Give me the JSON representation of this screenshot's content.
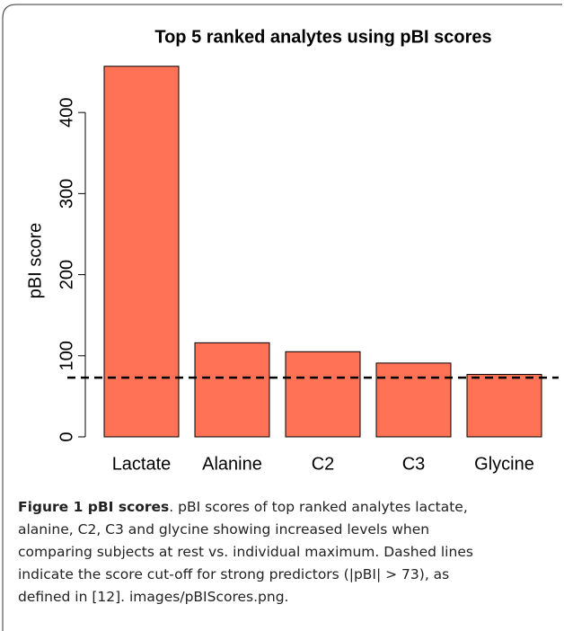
{
  "chart_data": {
    "type": "bar",
    "title": "Top 5 ranked analytes using pBI scores",
    "y_label": "pBI score",
    "categories": [
      "Lactate",
      "Alanine",
      "C2",
      "C3",
      "Glycine"
    ],
    "values": [
      457,
      116,
      105,
      91,
      77
    ],
    "color": "#ff7256",
    "ylim": [
      0,
      480
    ],
    "yticks": [
      0,
      100,
      200,
      300,
      400
    ],
    "threshold": 73
  },
  "caption": {
    "label": "Figure 1 pBI scores",
    "lines": [
      ". pBI scores of top ranked analytes lactate,",
      "alanine, C2, C3 and glycine showing increased levels when",
      "comparing subjects at rest vs. individual maximum. Dashed lines",
      "indicate the score cut-off for strong predictors (|pBI| > 73), as",
      "defined in [12]. images/pBIScores.png."
    ]
  }
}
